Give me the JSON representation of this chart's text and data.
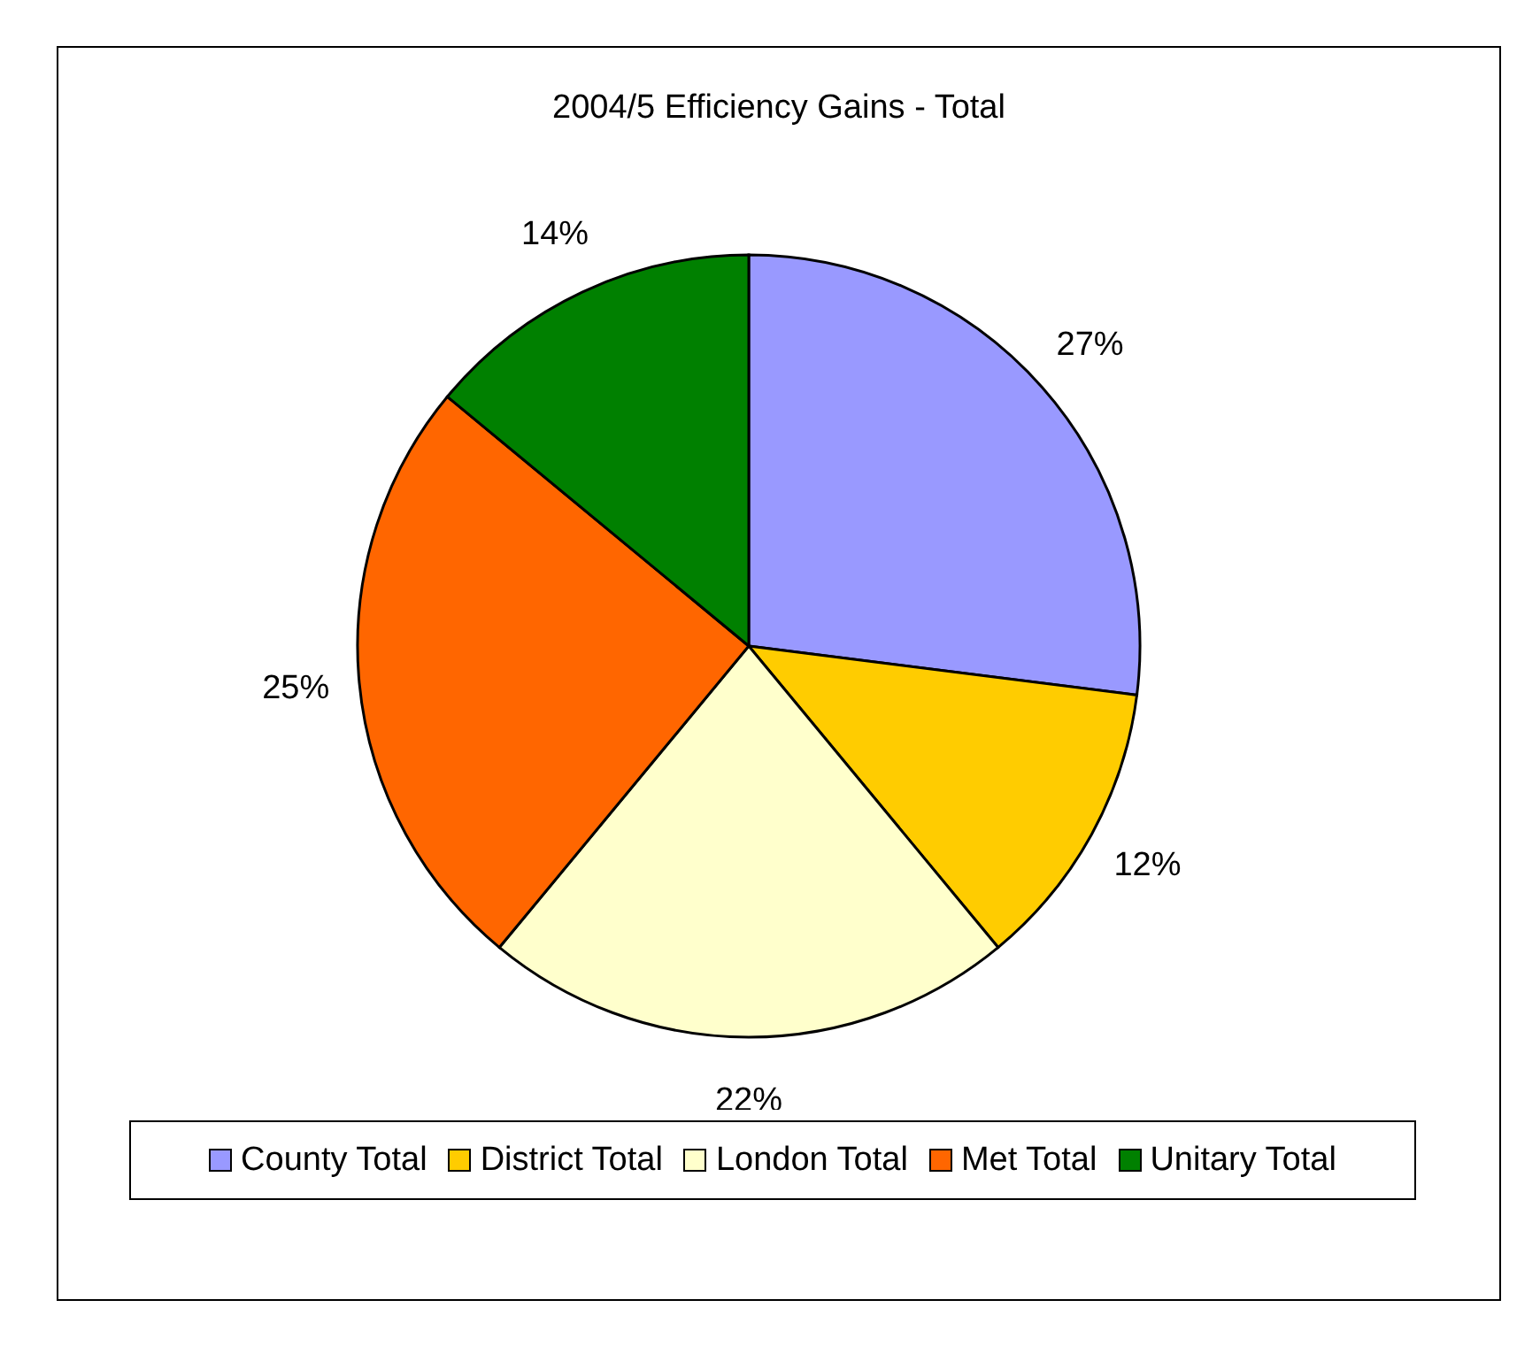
{
  "chart_data": {
    "type": "pie",
    "title": "2004/5 Efficiency Gains - Total",
    "categories": [
      "County Total",
      "District Total",
      "London Total",
      "Met Total",
      "Unitary Total"
    ],
    "values": [
      27,
      12,
      22,
      25,
      14
    ],
    "value_labels": [
      "27%",
      "12%",
      "22%",
      "25%",
      "14%"
    ],
    "colors": [
      "#9999ff",
      "#ffcc00",
      "#ffffcc",
      "#ff6600",
      "#008000"
    ],
    "legend": "bottom"
  }
}
